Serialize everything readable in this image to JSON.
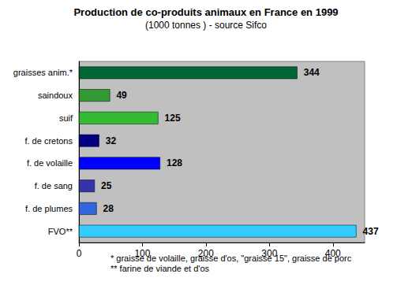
{
  "chart_data": {
    "type": "bar",
    "orientation": "horizontal",
    "title": "Production de co-produits animaux en France en 1999",
    "subtitle": "(1000 tonnes ) - source Sifco",
    "categories": [
      "graisses anim.*",
      "saindoux",
      "suif",
      "f. de cretons",
      "f. de volaille",
      "f. de sang",
      "f. de plumes",
      "FVO**"
    ],
    "values": [
      344,
      49,
      125,
      32,
      128,
      25,
      28,
      437
    ],
    "colors": [
      "#006633",
      "#339933",
      "#33bb33",
      "#000080",
      "#0000ff",
      "#3333aa",
      "#3366dd",
      "#33ccff"
    ],
    "xlim": [
      0,
      450
    ],
    "xticks": [
      0,
      100,
      200,
      300,
      400
    ],
    "grid": false,
    "data_labels": true,
    "annotations": [
      "* graisse de volaille, graisse d'os, \"graisse 15\", graisse de porc",
      "** farine de viande et d'os"
    ]
  }
}
